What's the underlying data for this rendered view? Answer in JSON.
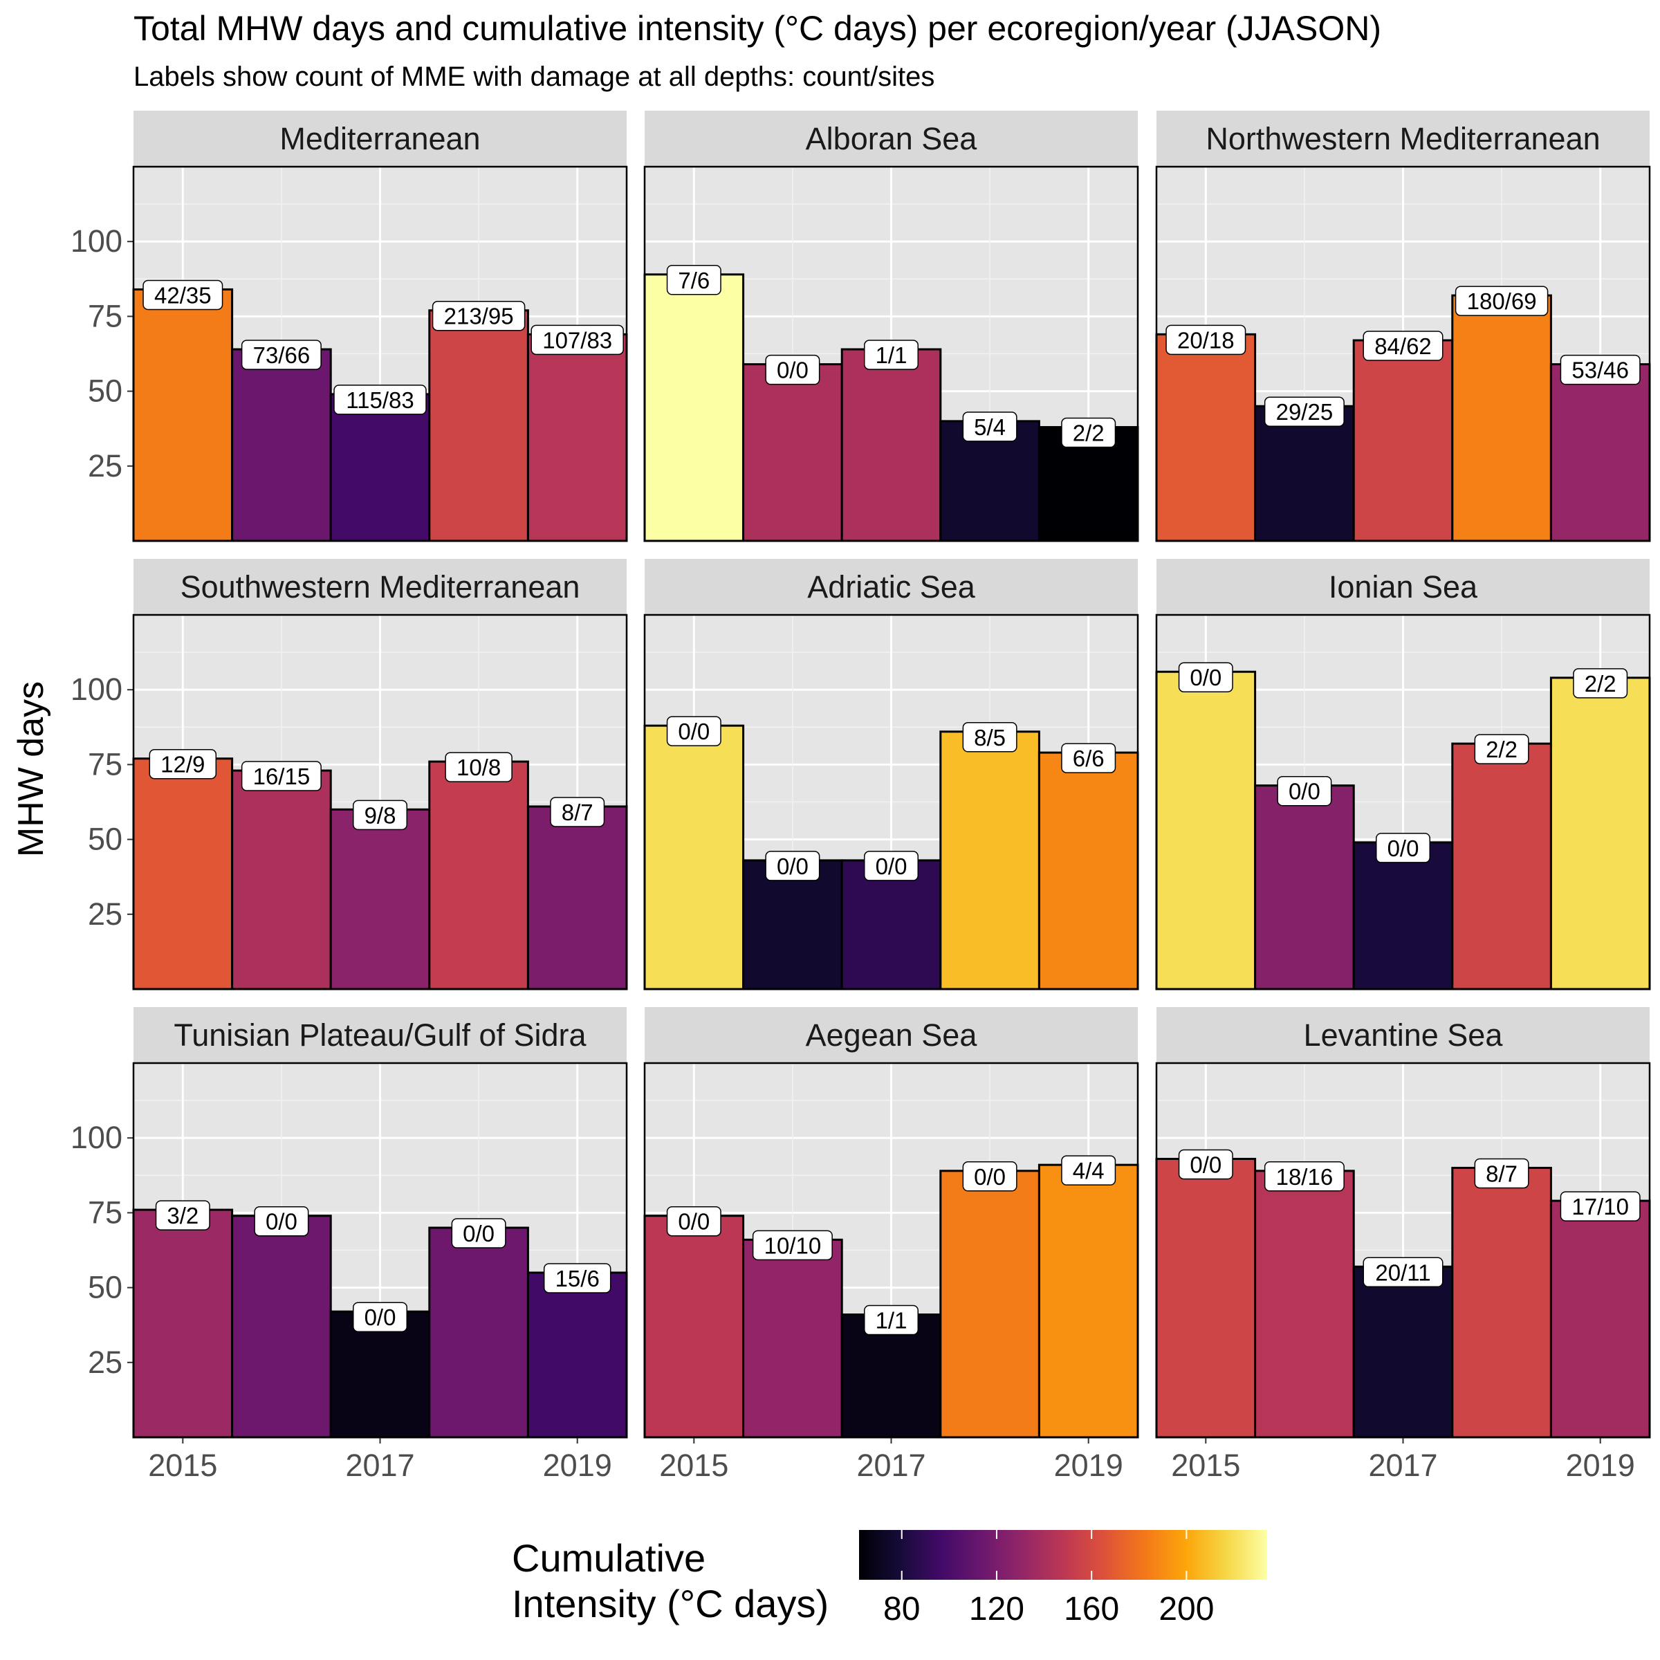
{
  "title": "Total MHW days and cumulative intensity (°C days) per ecoregion/year (JJASON)",
  "subtitle": "Labels show count of MME with damage at all depths: count/sites",
  "chart_data": {
    "type": "bar",
    "layout": "facet-grid-3x3",
    "x": [
      2015,
      2016,
      2017,
      2018,
      2019
    ],
    "x_tick_labels": [
      "2015",
      "2017",
      "2019"
    ],
    "ylabel": "MHW days",
    "y_ticks": [
      25,
      50,
      75,
      100
    ],
    "ylim": [
      0,
      125
    ],
    "grid": true,
    "fill_scale": {
      "name": "Cumulative Intensity (°C days)",
      "palette": "inferno",
      "range": [
        62,
        234
      ],
      "ticks": [
        80,
        120,
        160,
        200
      ]
    },
    "legend_position": "bottom",
    "facets": [
      {
        "name": "Mediterranean",
        "values": [
          84,
          64,
          49,
          77,
          69
        ],
        "fill": [
          184,
          114,
          97,
          157,
          146
        ],
        "labels": [
          "42/35",
          "73/66",
          "115/83",
          "213/95",
          "107/83"
        ]
      },
      {
        "name": "Alboran Sea",
        "values": [
          89,
          59,
          64,
          40,
          38
        ],
        "fill": [
          234,
          141,
          141,
          76,
          62
        ],
        "labels": [
          "7/6",
          "0/0",
          "1/1",
          "5/4",
          "2/2"
        ]
      },
      {
        "name": "Northwestern Mediterranean",
        "values": [
          69,
          45,
          67,
          82,
          59
        ],
        "fill": [
          169,
          76,
          157,
          186,
          132
        ],
        "labels": [
          "20/18",
          "29/25",
          "84/62",
          "180/69",
          "53/46"
        ]
      },
      {
        "name": "Southwestern Mediterranean",
        "values": [
          77,
          73,
          60,
          76,
          61
        ],
        "fill": [
          168,
          141,
          127,
          152,
          121
        ],
        "labels": [
          "12/9",
          "16/15",
          "9/8",
          "10/8",
          "8/7"
        ]
      },
      {
        "name": "Adriatic Sea",
        "values": [
          88,
          43,
          43,
          86,
          79
        ],
        "fill": [
          220,
          76,
          88,
          208,
          188
        ],
        "labels": [
          "0/0",
          "0/0",
          "0/0",
          "8/5",
          "6/6"
        ]
      },
      {
        "name": "Ionian Sea",
        "values": [
          106,
          68,
          49,
          82,
          104
        ],
        "fill": [
          220,
          125,
          80,
          157,
          220
        ],
        "labels": [
          "0/0",
          "0/0",
          "0/0",
          "2/2",
          "2/2"
        ]
      },
      {
        "name": "Tunisian Plateau/Gulf of Sidra",
        "values": [
          76,
          74,
          42,
          70,
          55
        ],
        "fill": [
          134,
          115,
          68,
          115,
          96
        ],
        "labels": [
          "3/2",
          "0/0",
          "0/0",
          "0/0",
          "15/6"
        ]
      },
      {
        "name": "Aegean Sea",
        "values": [
          74,
          66,
          41,
          89,
          91
        ],
        "fill": [
          148,
          130,
          68,
          184,
          192
        ],
        "labels": [
          "0/0",
          "10/10",
          "1/1",
          "0/0",
          "4/4"
        ]
      },
      {
        "name": "Levantine Sea",
        "values": [
          93,
          89,
          57,
          90,
          79
        ],
        "fill": [
          157,
          146,
          76,
          157,
          137
        ],
        "labels": [
          "0/0",
          "18/16",
          "20/11",
          "8/7",
          "17/10"
        ]
      }
    ]
  }
}
